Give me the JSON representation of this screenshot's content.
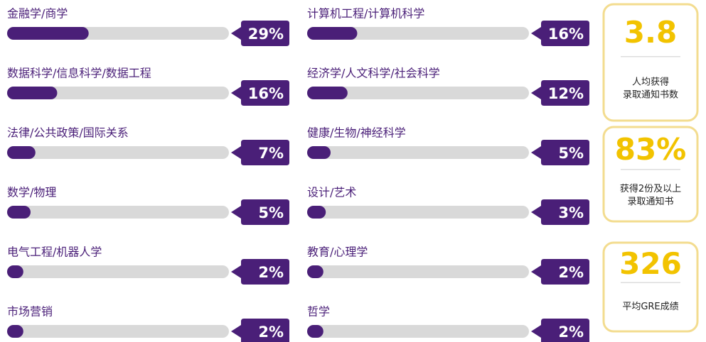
{
  "chart_data": {
    "type": "bar",
    "categories": [
      "金融学/商学",
      "数据科学/信息科学/数据工程",
      "法律/公共政策/国际关系",
      "数学/物理",
      "电气工程/机器人学",
      "市场营销",
      "计算机工程/计算机科学",
      "经济学/人文科学/社会科学",
      "健康/生物/神经科学",
      "设计/艺术",
      "教育/心理学",
      "哲学"
    ],
    "values": [
      29,
      16,
      7,
      5,
      2,
      2,
      16,
      12,
      5,
      3,
      2,
      2
    ],
    "value_labels": [
      "29%",
      "16%",
      "7%",
      "5%",
      "2%",
      "2%",
      "16%",
      "12%",
      "5%",
      "3%",
      "2%",
      "2%"
    ],
    "color": "#4a1f78"
  },
  "stats": [
    {
      "value": "3.8",
      "label": [
        "人均获得",
        "录取通知书数"
      ]
    },
    {
      "value": "83%",
      "label": [
        "获得2份及以上",
        "录取通知书"
      ]
    },
    {
      "value": "326",
      "label": [
        "平均GRE成绩"
      ]
    }
  ]
}
